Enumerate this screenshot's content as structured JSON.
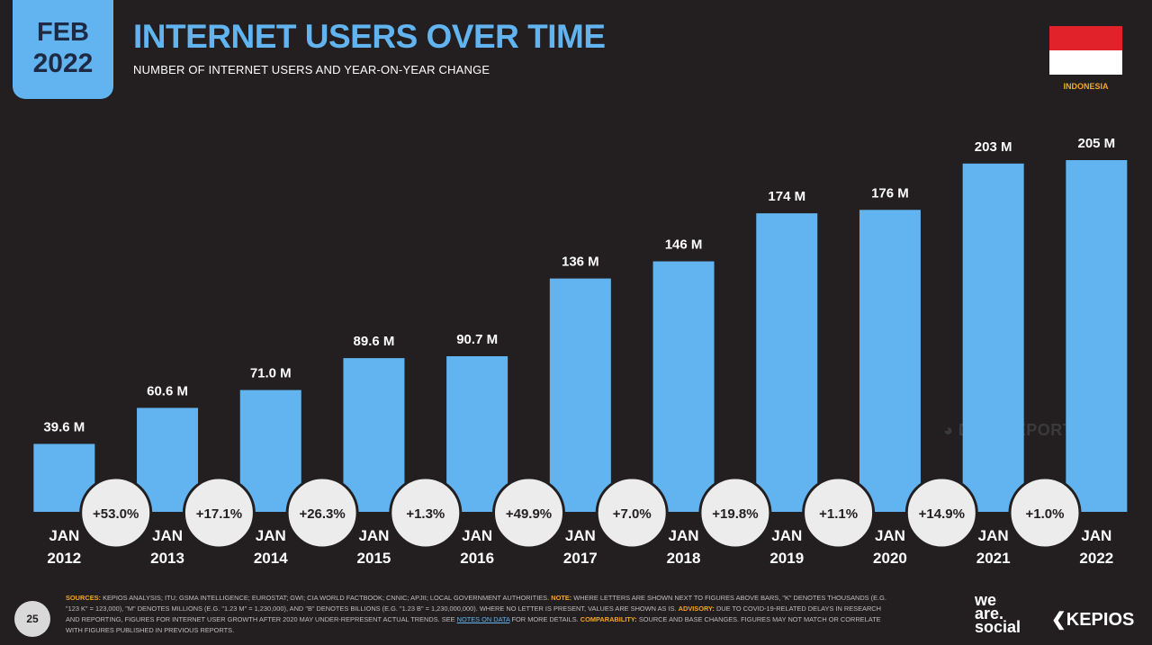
{
  "badge": {
    "month": "FEB",
    "year": "2022"
  },
  "title": "INTERNET USERS OVER TIME",
  "subtitle": "NUMBER OF INTERNET USERS AND YEAR-ON-YEAR CHANGE",
  "country": "INDONESIA",
  "colors": {
    "bar": "#62b4f0",
    "background": "#231f20",
    "accent": "#f5a623",
    "circle": "#ececec",
    "flag_red": "#e2222a"
  },
  "chart_data": {
    "type": "bar",
    "categories": [
      "JAN 2012",
      "JAN 2013",
      "JAN 2014",
      "JAN 2015",
      "JAN 2016",
      "JAN 2017",
      "JAN 2018",
      "JAN 2019",
      "JAN 2020",
      "JAN 2021",
      "JAN 2022"
    ],
    "category_lines": [
      [
        "JAN",
        "2012"
      ],
      [
        "JAN",
        "2013"
      ],
      [
        "JAN",
        "2014"
      ],
      [
        "JAN",
        "2015"
      ],
      [
        "JAN",
        "2016"
      ],
      [
        "JAN",
        "2017"
      ],
      [
        "JAN",
        "2018"
      ],
      [
        "JAN",
        "2019"
      ],
      [
        "JAN",
        "2020"
      ],
      [
        "JAN",
        "2021"
      ],
      [
        "JAN",
        "2022"
      ]
    ],
    "values": [
      39.6,
      60.6,
      71.0,
      89.6,
      90.7,
      136,
      146,
      174,
      176,
      203,
      205
    ],
    "value_labels": [
      "39.6 M",
      "60.6 M",
      "71.0 M",
      "89.6 M",
      "90.7 M",
      "136 M",
      "146 M",
      "174 M",
      "176 M",
      "203 M",
      "205 M"
    ],
    "unit": "M",
    "yoy_change": [
      "+53.0%",
      "+17.1%",
      "+26.3%",
      "+1.3%",
      "+49.9%",
      "+7.0%",
      "+19.8%",
      "+1.1%",
      "+14.9%",
      "+1.0%"
    ],
    "ylim": [
      0,
      205
    ],
    "grid": false,
    "legend": "none"
  },
  "watermark": "DATAREPORTAL",
  "page_number": "25",
  "footnote": {
    "sources_label": "SOURCES:",
    "sources_text": "KEPIOS ANALYSIS; ITU; GSMA INTELLIGENCE; EUROSTAT; GWI; CIA WORLD FACTBOOK; CNNIC; APJII; LOCAL GOVERNMENT AUTHORITIES.",
    "note_label": "NOTE:",
    "note_text": "WHERE LETTERS ARE SHOWN NEXT TO FIGURES ABOVE BARS, \"K\" DENOTES THOUSANDS (E.G. \"123 K\" = 123,000), \"M\" DENOTES MILLIONS (E.G. \"1.23 M\" = 1,230,000), AND \"B\" DENOTES BILLIONS (E.G. \"1.23 B\" = 1,230,000,000). WHERE NO LETTER IS PRESENT, VALUES ARE SHOWN AS IS.",
    "advisory_label": "ADVISORY:",
    "advisory_text": "DUE TO COVID-19-RELATED DELAYS IN RESEARCH AND REPORTING, FIGURES FOR INTERNET USER GROWTH AFTER 2020 MAY UNDER-REPRESENT ACTUAL TRENDS. SEE",
    "link_text": "NOTES ON DATA",
    "after_link": "FOR MORE DETAILS.",
    "comparability_label": "COMPARABILITY:",
    "comparability_text": "SOURCE AND BASE CHANGES. FIGURES MAY NOT MATCH OR CORRELATE WITH FIGURES PUBLISHED IN PREVIOUS REPORTS."
  },
  "brand": {
    "we_are_social": [
      "we",
      "are.",
      "social"
    ],
    "kepios": "KEPIOS"
  }
}
